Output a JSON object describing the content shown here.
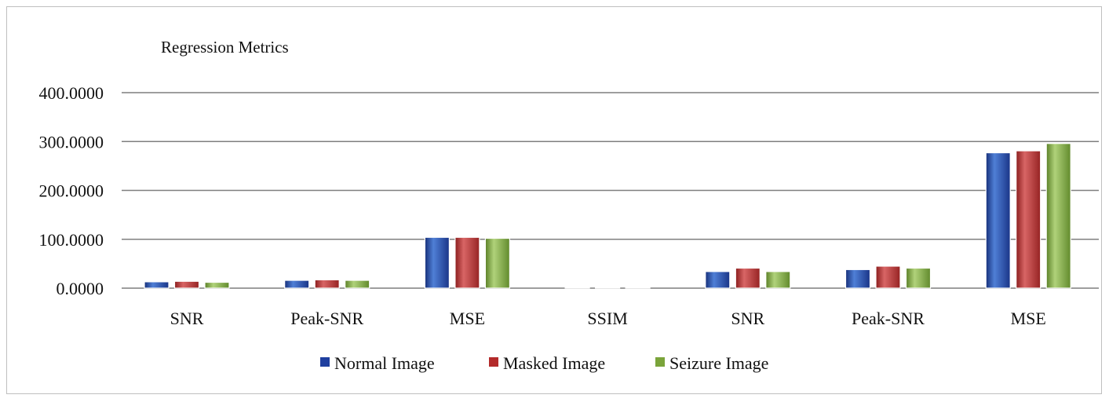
{
  "chart_data": {
    "type": "bar",
    "title": "Regression Metrics",
    "xlabel": "",
    "ylabel": "",
    "ylim": [
      0,
      400
    ],
    "yticks": [
      0,
      100,
      200,
      300,
      400
    ],
    "ytick_labels": [
      "0.0000",
      "100.0000",
      "200.0000",
      "300.0000",
      "400.0000"
    ],
    "grid": true,
    "legend_position": "bottom",
    "categories": [
      "SNR",
      "Peak-SNR",
      "MSE",
      "SSIM",
      "SNR",
      "Peak-SNR",
      "MSE"
    ],
    "series": [
      {
        "name": "Normal Image",
        "color": "#1f3f9f",
        "values": [
          13,
          16,
          104,
          0.9,
          34,
          38,
          277
        ]
      },
      {
        "name": "Masked Image",
        "color": "#b32a2a",
        "values": [
          14,
          17,
          104,
          0.9,
          41,
          45,
          281
        ]
      },
      {
        "name": "Seizure Image",
        "color": "#7aa43a",
        "values": [
          12,
          16,
          102,
          0.9,
          34,
          41,
          296
        ]
      }
    ]
  }
}
